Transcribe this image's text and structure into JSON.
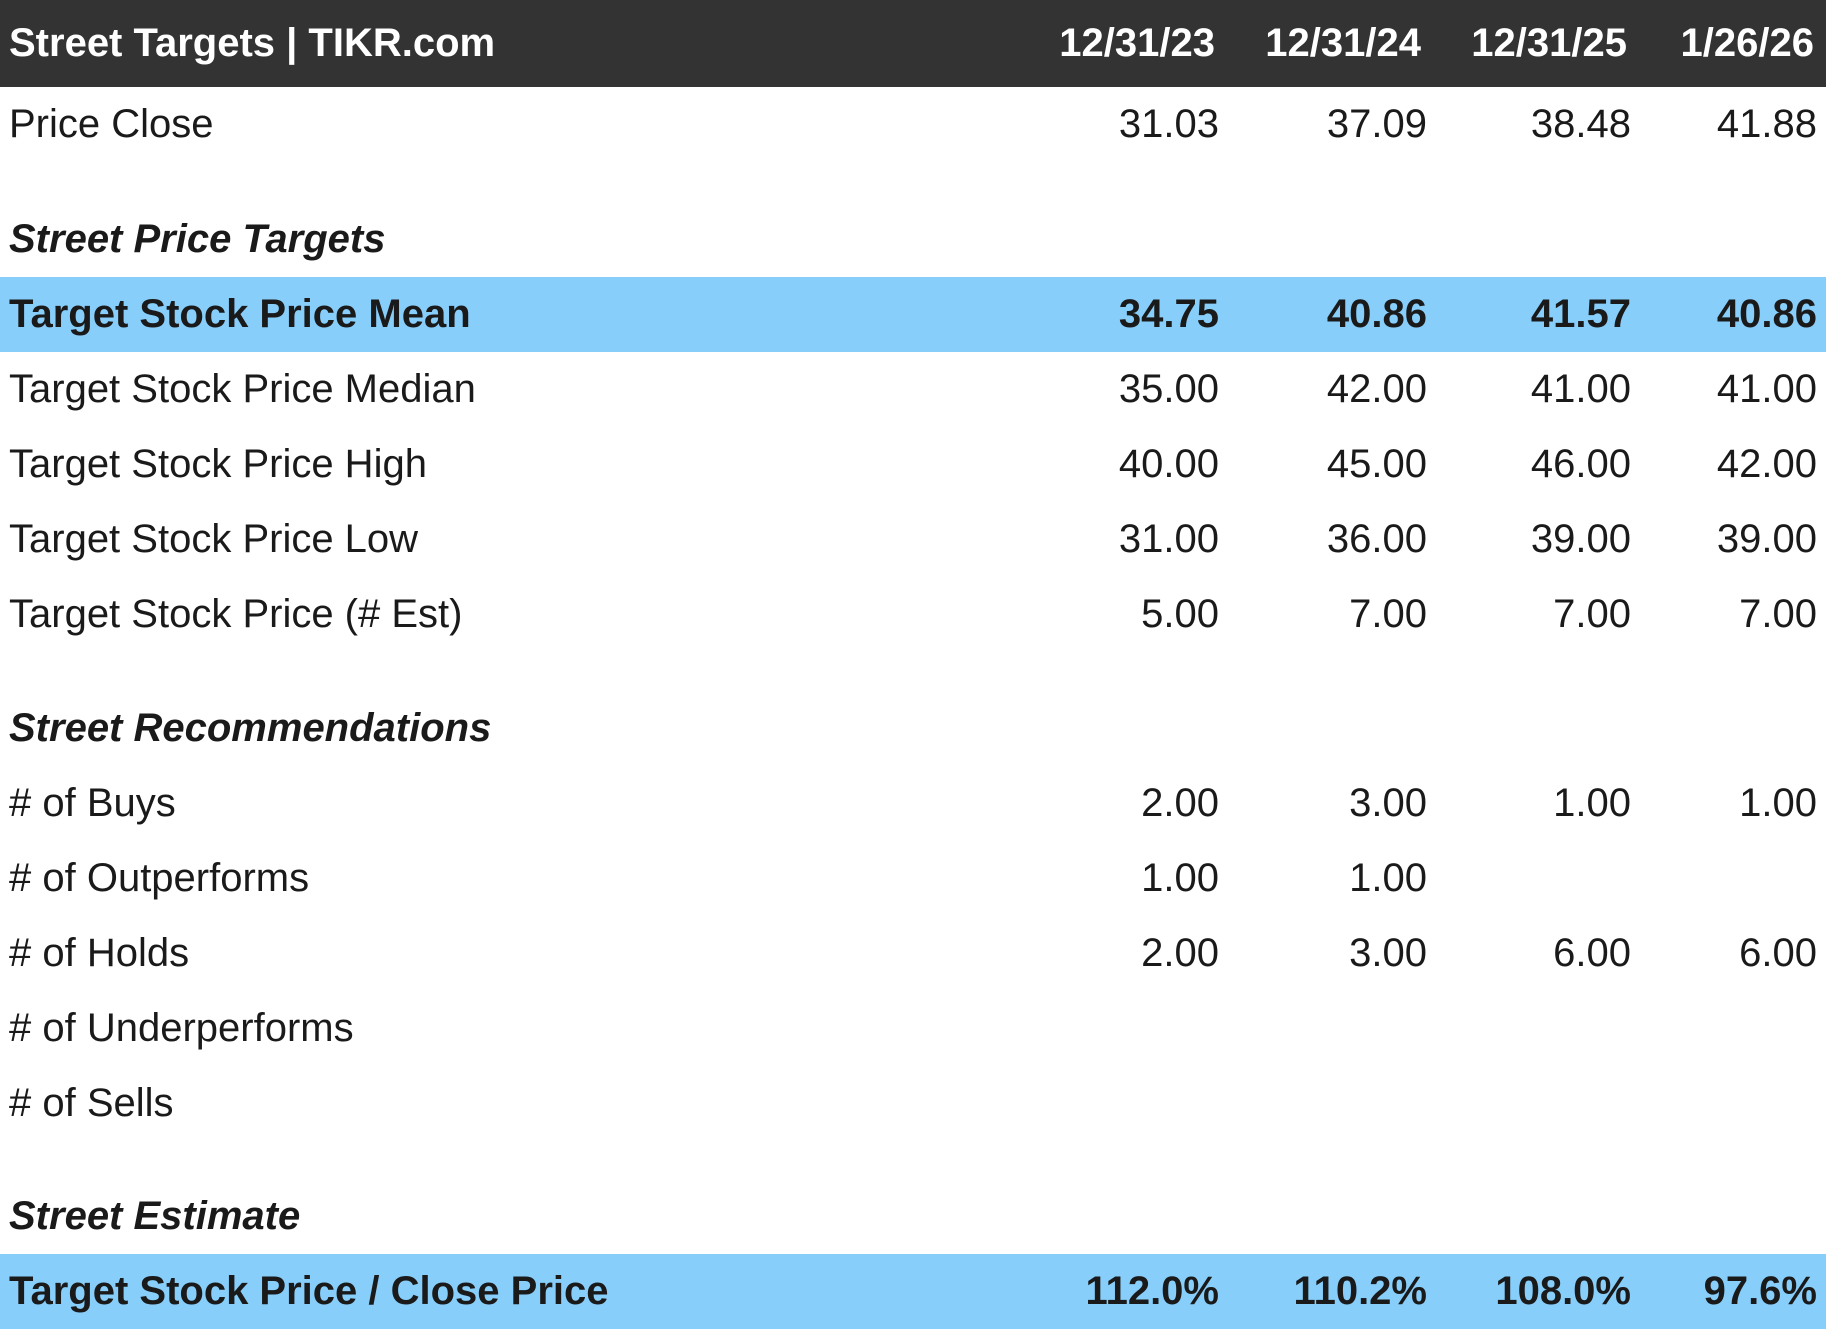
{
  "header": {
    "title": "Street Targets | TIKR.com",
    "columns": [
      "12/31/23",
      "12/31/24",
      "12/31/25",
      "1/26/26"
    ],
    "background": "#333333"
  },
  "highlight_color": "#87cefa",
  "price_close": {
    "label": "Price Close",
    "values": [
      "31.03",
      "37.09",
      "38.48",
      "41.88"
    ]
  },
  "sections": [
    {
      "title": "Street Price Targets",
      "rows": [
        {
          "label": "Target Stock Price Mean",
          "values": [
            "34.75",
            "40.86",
            "41.57",
            "40.86"
          ],
          "highlight": true
        },
        {
          "label": "Target Stock Price Median",
          "values": [
            "35.00",
            "42.00",
            "41.00",
            "41.00"
          ]
        },
        {
          "label": "Target Stock Price High",
          "values": [
            "40.00",
            "45.00",
            "46.00",
            "42.00"
          ]
        },
        {
          "label": "Target Stock Price Low",
          "values": [
            "31.00",
            "36.00",
            "39.00",
            "39.00"
          ]
        },
        {
          "label": "Target Stock Price (# Est)",
          "values": [
            "5.00",
            "7.00",
            "7.00",
            "7.00"
          ]
        }
      ]
    },
    {
      "title": "Street Recommendations",
      "rows": [
        {
          "label": "# of Buys",
          "values": [
            "2.00",
            "3.00",
            "1.00",
            "1.00"
          ]
        },
        {
          "label": "# of Outperforms",
          "values": [
            "1.00",
            "1.00",
            "",
            ""
          ]
        },
        {
          "label": "# of Holds",
          "values": [
            "2.00",
            "3.00",
            "6.00",
            "6.00"
          ]
        },
        {
          "label": "# of Underperforms",
          "values": [
            "",
            "",
            "",
            ""
          ]
        },
        {
          "label": "# of Sells",
          "values": [
            "",
            "",
            "",
            ""
          ]
        }
      ]
    },
    {
      "title": "Street Estimate",
      "rows": [
        {
          "label": "Target Stock Price / Close Price",
          "values": [
            "112.0%",
            "110.2%",
            "108.0%",
            "97.6%"
          ],
          "highlight": true
        }
      ]
    }
  ]
}
